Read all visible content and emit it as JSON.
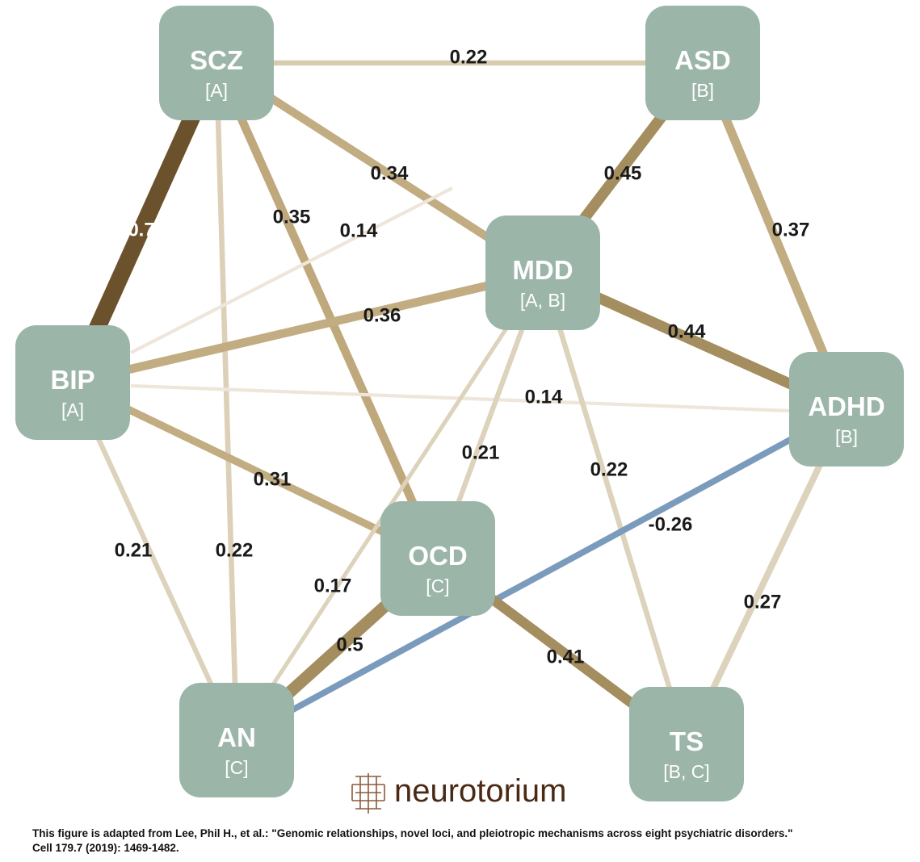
{
  "nodes": [
    {
      "id": "SCZ",
      "name": "SCZ",
      "group": "[A]"
    },
    {
      "id": "ASD",
      "name": "ASD",
      "group": "[B]"
    },
    {
      "id": "MDD",
      "name": "MDD",
      "group": "[A, B]"
    },
    {
      "id": "BIP",
      "name": "BIP",
      "group": "[A]"
    },
    {
      "id": "ADHD",
      "name": "ADHD",
      "group": "[B]"
    },
    {
      "id": "OCD",
      "name": "OCD",
      "group": "[C]"
    },
    {
      "id": "AN",
      "name": "AN",
      "group": "[C]"
    },
    {
      "id": "TS",
      "name": "TS",
      "group": "[B, C]"
    }
  ],
  "edges": [
    {
      "from": "SCZ",
      "to": "ASD",
      "label": "0.22",
      "value": 0.22,
      "color": "#d8ccb0"
    },
    {
      "from": "SCZ",
      "to": "BIP",
      "label": "0.7",
      "value": 0.7,
      "color": "#6b512c"
    },
    {
      "from": "SCZ",
      "to": "MDD",
      "label": "0.34",
      "value": 0.34,
      "color": "#c2ad82"
    },
    {
      "from": "SCZ",
      "to": "OCD",
      "label": "0.35",
      "value": 0.35,
      "color": "#bfa97c"
    },
    {
      "from": "SCZ",
      "to": "AN",
      "label": "0.22",
      "value": 0.22,
      "color": "#dcd1b8"
    },
    {
      "from": "ASD",
      "to": "MDD",
      "label": "0.45",
      "value": 0.45,
      "color": "#a48d5e"
    },
    {
      "from": "ASD",
      "to": "ADHD",
      "label": "0.37",
      "value": 0.37,
      "color": "#c2ad82"
    },
    {
      "from": "BIP",
      "to": "MDD",
      "label": "0.36",
      "value": 0.36,
      "color": "#c2ad82"
    },
    {
      "from": "BIP",
      "to": "ASD",
      "label": "0.14",
      "value": 0.14,
      "color": "#eee6da"
    },
    {
      "from": "BIP",
      "to": "ADHD",
      "label": "0.14",
      "value": 0.14,
      "color": "#eee6da"
    },
    {
      "from": "BIP",
      "to": "OCD",
      "label": "0.31",
      "value": 0.31,
      "color": "#c2ad82"
    },
    {
      "from": "BIP",
      "to": "AN",
      "label": "0.21",
      "value": 0.21,
      "color": "#ddd3bc"
    },
    {
      "from": "MDD",
      "to": "ADHD",
      "label": "0.44",
      "value": 0.44,
      "color": "#a48d5e"
    },
    {
      "from": "MDD",
      "to": "OCD",
      "label": "0.21",
      "value": 0.21,
      "color": "#ddd3bc"
    },
    {
      "from": "MDD",
      "to": "AN",
      "label": "0.17",
      "value": 0.17,
      "color": "#ddd3bc"
    },
    {
      "from": "MDD",
      "to": "TS",
      "label": "0.22",
      "value": 0.22,
      "color": "#ddd3bc"
    },
    {
      "from": "ADHD",
      "to": "AN",
      "label": "-0.26",
      "value": -0.26,
      "color": "#7b9bbc"
    },
    {
      "from": "ADHD",
      "to": "TS",
      "label": "0.27",
      "value": 0.27,
      "color": "#ddd3bc"
    },
    {
      "from": "OCD",
      "to": "AN",
      "label": "0.5",
      "value": 0.5,
      "color": "#a48d5e"
    },
    {
      "from": "OCD",
      "to": "TS",
      "label": "0.41",
      "value": 0.41,
      "color": "#a48d5e"
    }
  ],
  "logo": {
    "text": "neurotorium",
    "color": "#4a2a14"
  },
  "citation": {
    "line1": "This figure is adapted from Lee, Phil H., et al.: \"Genomic relationships, novel loci, and pleiotropic mechanisms across eight psychiatric disorders.\"",
    "line2": "Cell 179.7 (2019): 1469-1482."
  },
  "colors": {
    "node": "#9bb5a9",
    "negative": "#7b9bbc",
    "strong": "#6b512c"
  }
}
